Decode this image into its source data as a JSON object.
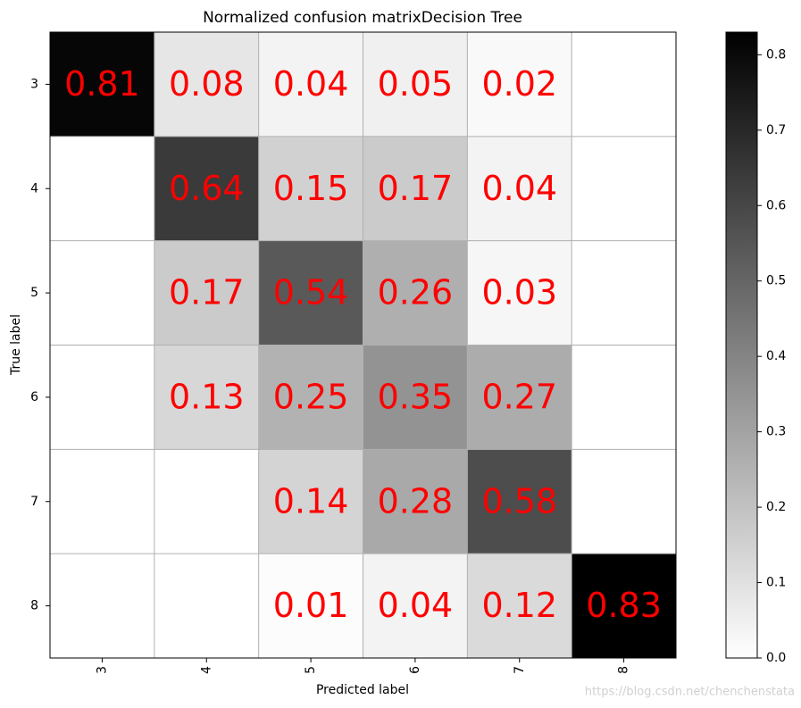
{
  "chart_data": {
    "type": "heatmap",
    "title": "Normalized confusion matrixDecision Tree",
    "xlabel": "Predicted label",
    "ylabel": "True label",
    "x_categories": [
      "3",
      "4",
      "5",
      "6",
      "7",
      "8"
    ],
    "y_categories": [
      "3",
      "4",
      "5",
      "6",
      "7",
      "8"
    ],
    "values": [
      [
        0.81,
        0.08,
        0.04,
        0.05,
        0.02,
        0
      ],
      [
        0,
        0.64,
        0.15,
        0.17,
        0.04,
        0
      ],
      [
        0,
        0.17,
        0.54,
        0.26,
        0.03,
        0
      ],
      [
        0,
        0.13,
        0.25,
        0.35,
        0.27,
        0
      ],
      [
        0,
        0,
        0.14,
        0.28,
        0.58,
        0
      ],
      [
        0,
        0,
        0.01,
        0.04,
        0.12,
        0.83
      ]
    ],
    "colormap": "gray_r",
    "colorbar_lim": [
      0,
      0.83
    ],
    "colorbar_ticks": [
      {
        "value": 0,
        "label": "0.0"
      },
      {
        "value": 0.1,
        "label": "0.1"
      },
      {
        "value": 0.2,
        "label": "0.2"
      },
      {
        "value": 0.3,
        "label": "0.3"
      },
      {
        "value": 0.4,
        "label": "0.4"
      },
      {
        "value": 0.5,
        "label": "0.5"
      },
      {
        "value": 0.6,
        "label": "0.6"
      },
      {
        "value": 0.7,
        "label": "0.7"
      },
      {
        "value": 0.8,
        "label": "0.8"
      }
    ],
    "grid": true,
    "watermark": "https://blog.csdn.net/chenchenstata"
  }
}
